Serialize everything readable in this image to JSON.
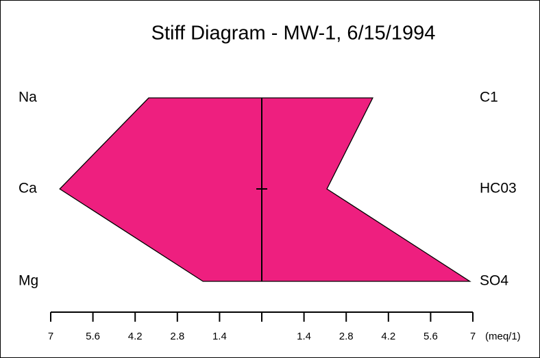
{
  "chart_data": {
    "type": "stiff",
    "title": "Stiff Diagram - MW-1, 6/15/1994",
    "x_unit_label": "(meq/1)",
    "color": "#ee1f7f",
    "cations": {
      "names": [
        "Na",
        "Ca",
        "Mg"
      ],
      "values": [
        3.75,
        6.7,
        1.95
      ]
    },
    "anions": {
      "names": [
        "C1",
        "HC03",
        "SO4"
      ],
      "values": [
        3.68,
        2.16,
        6.9
      ]
    },
    "xlim": [
      -7,
      7
    ],
    "xticks": [
      {
        "value": -7,
        "label": "7"
      },
      {
        "value": -5.6,
        "label": "5.6"
      },
      {
        "value": -4.2,
        "label": "4.2"
      },
      {
        "value": -2.8,
        "label": "2.8"
      },
      {
        "value": -1.4,
        "label": "1.4"
      },
      {
        "value": 0,
        "label": null
      },
      1.4,
      2.8,
      4.2,
      5.6,
      7
    ]
  }
}
